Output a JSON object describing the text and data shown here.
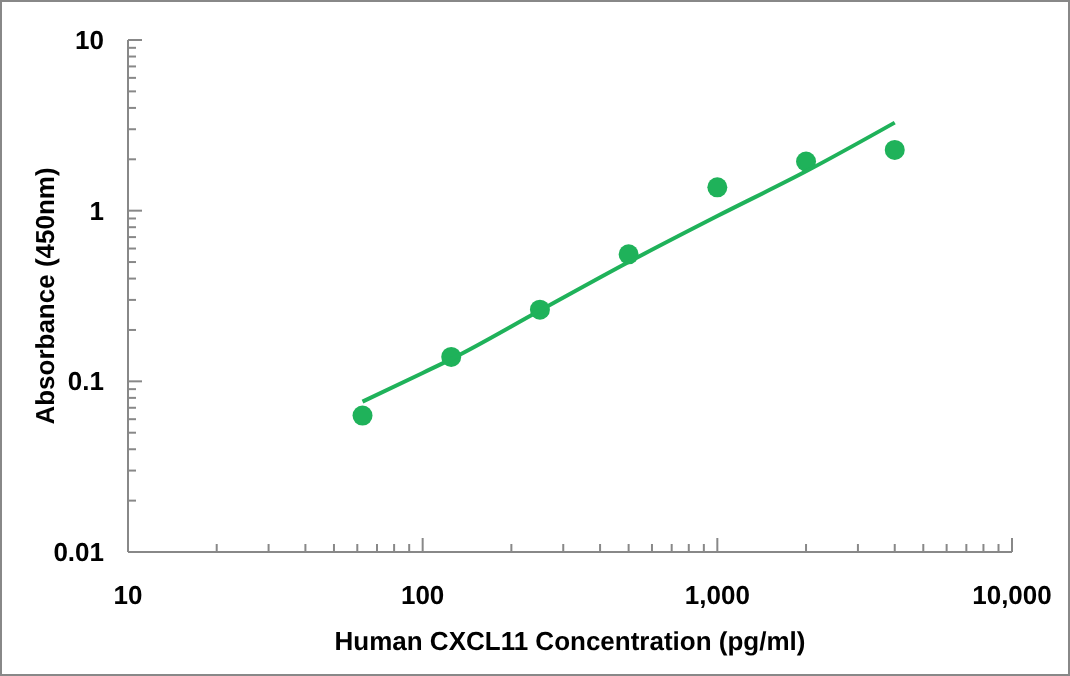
{
  "chart_data": {
    "type": "scatter",
    "xlabel": "Human CXCL11 Concentration (pg/ml)",
    "ylabel": "Absorbance (450nm)",
    "log": "xy",
    "xlim": [
      10,
      10000
    ],
    "ylim": [
      0.01,
      10
    ],
    "xticks": [
      10,
      100,
      {
        "value": 1000,
        "label": "1,000"
      },
      {
        "value": 10000,
        "label": "10,000"
      }
    ],
    "yticks": [
      0.01,
      0.1,
      1,
      10
    ],
    "marker": "circle",
    "grid": false,
    "series": [
      {
        "color": "#1fb25a",
        "x": [
          62.5,
          125,
          250,
          500,
          1000,
          2000,
          4000
        ],
        "values": [
          0.063,
          0.139,
          0.263,
          0.555,
          1.37,
          1.94,
          2.27
        ]
      },
      {
        "type": "line",
        "color": "#1fb25a",
        "marker": "none",
        "x": [
          62.5,
          100,
          125,
          250,
          500,
          1000,
          2000,
          4000
        ],
        "values": [
          0.076,
          0.112,
          0.135,
          0.26,
          0.5,
          0.93,
          1.7,
          3.28
        ]
      }
    ]
  }
}
